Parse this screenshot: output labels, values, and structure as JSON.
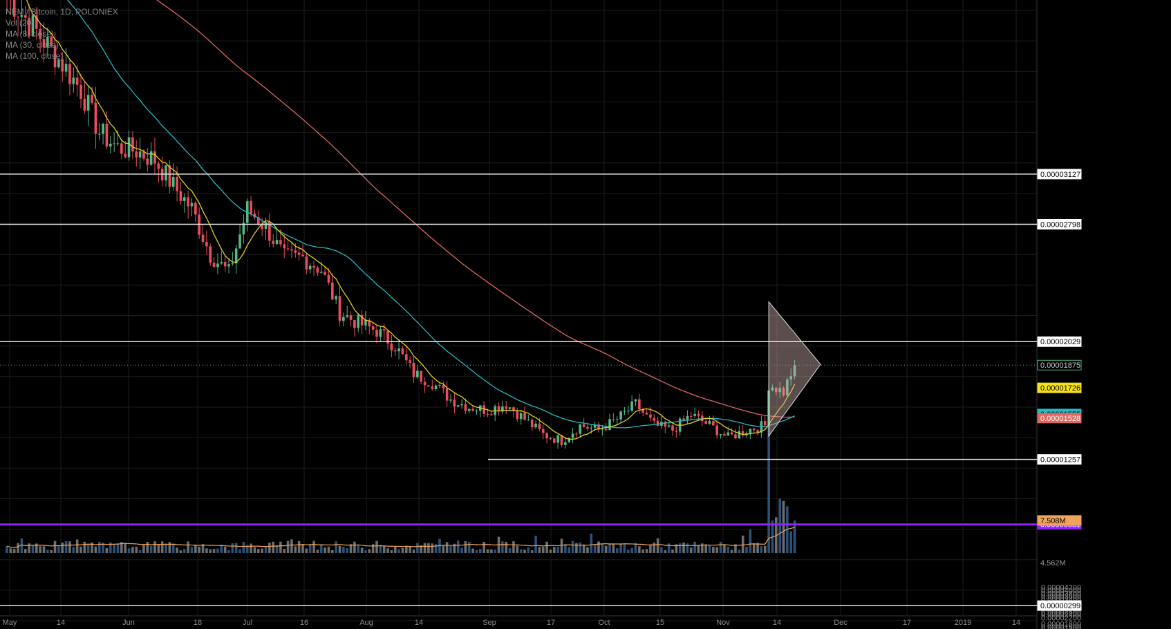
{
  "legend": {
    "symbol": "NEM / Bitcoin, 1D, POLONIEX",
    "vol": "Vol (20)",
    "ma8": "MA (8, close)",
    "ma30": "MA (30, close)",
    "ma100": "MA (100, close)"
  },
  "colors": {
    "background": "#000000",
    "grid": "#1c1c1c",
    "up": "#53b987",
    "down": "#eb4d5c",
    "ma8": "#e3d11b",
    "ma30": "#22b9c6",
    "ma100": "#e0675e",
    "purple": "#8e24f5",
    "hline": "#e5e5e5",
    "vol_up": "#315a86",
    "vol_down": "#7a7a7a"
  },
  "chart_data": {
    "type": "candlestick",
    "grid": true,
    "price_axis_side": "right",
    "ylim": [
      6.5e-07,
      4.4e-06
    ],
    "y_ticks": [
      "0.00004200",
      "0.00004000",
      "0.00003800",
      "0.00003600",
      "0.00003400",
      "0.00003200",
      "0.00003000",
      "0.00002800",
      "0.00002600",
      "0.00002400",
      "0.00002200",
      "0.00001800",
      "0.00001600",
      "0.00001400",
      "0.00001200",
      "0.00001000",
      "0.00000800",
      "0.00000600",
      "0.00000400",
      "0.00000200"
    ],
    "x_ticks": [
      "May",
      "14",
      "Jun",
      "18",
      "Jul",
      "16",
      "Aug",
      "14",
      "Sep",
      "17",
      "Oct",
      "15",
      "Nov",
      "14",
      "Dec",
      "17",
      "2019",
      "14"
    ],
    "horizontal_levels": [
      {
        "label": "0.00003127",
        "value": 3.127e-05,
        "color": "#e5e5e5"
      },
      {
        "label": "0.00002798",
        "value": 2.798e-05,
        "color": "#e5e5e5"
      },
      {
        "label": "0.00002029",
        "value": 2.029e-05,
        "color": "#e5e5e5"
      },
      {
        "label": "0.00001257",
        "value": 1.257e-05,
        "color": "#e5e5e5"
      },
      {
        "label": "0.00000831",
        "value": 8.31e-06,
        "color": "#8e24f5"
      },
      {
        "label": "0.00000299",
        "value": 2.99e-06,
        "color": "#e5e5e5"
      }
    ],
    "price_tags": [
      {
        "label": "0.00001875",
        "value": 1.875e-05,
        "bg": "#000000",
        "fg": "#cccccc",
        "border": "#53b987"
      },
      {
        "label": "0.00001726",
        "value": 1.726e-05,
        "bg": "#f5e216",
        "fg": "#000000"
      },
      {
        "label": "0.00001555",
        "value": 1.555e-05,
        "bg": "#22b9c6",
        "fg": "#000000"
      },
      {
        "label": "0.00001528",
        "value": 1.528e-05,
        "bg": "#e0675e",
        "fg": "#ffffff"
      }
    ],
    "volume_tags": [
      {
        "label": "7.508M",
        "bg": "#f0a35a",
        "fg": "#000000"
      },
      {
        "label": "4.562M",
        "bg": "#000000",
        "fg": "#999999"
      }
    ],
    "last_close": 1.875e-05,
    "ma_last": {
      "ma8": 1.726e-05,
      "ma30": 1.555e-05,
      "ma100": 1.528e-05
    },
    "ohlc_anchor_points": [
      [
        0,
        4.3e-05
      ],
      [
        5,
        4.15e-05
      ],
      [
        10,
        4e-05
      ],
      [
        15,
        3.85e-05
      ],
      [
        20,
        3.68e-05
      ],
      [
        25,
        3.4e-05
      ],
      [
        30,
        3.3e-05
      ],
      [
        35,
        3.28e-05
      ],
      [
        40,
        3.22e-05
      ],
      [
        45,
        3.05e-05
      ],
      [
        50,
        2.9e-05
      ],
      [
        55,
        2.6e-05
      ],
      [
        60,
        2.48e-05
      ],
      [
        65,
        2.9e-05
      ],
      [
        70,
        2.78e-05
      ],
      [
        75,
        2.58e-05
      ],
      [
        80,
        2.58e-05
      ],
      [
        85,
        2.5e-05
      ],
      [
        90,
        2.22e-05
      ],
      [
        95,
        2.15e-05
      ],
      [
        100,
        2.1e-05
      ],
      [
        105,
        2e-05
      ],
      [
        110,
        1.82e-05
      ],
      [
        115,
        1.76e-05
      ],
      [
        120,
        1.65e-05
      ],
      [
        125,
        1.6e-05
      ],
      [
        130,
        1.58e-05
      ],
      [
        135,
        1.62e-05
      ],
      [
        140,
        1.52e-05
      ],
      [
        145,
        1.42e-05
      ],
      [
        150,
        1.38e-05
      ],
      [
        155,
        1.48e-05
      ],
      [
        160,
        1.45e-05
      ],
      [
        165,
        1.52e-05
      ],
      [
        170,
        1.62e-05
      ],
      [
        175,
        1.48e-05
      ],
      [
        180,
        1.45e-05
      ],
      [
        185,
        1.55e-05
      ],
      [
        190,
        1.48e-05
      ],
      [
        195,
        1.4e-05
      ],
      [
        200,
        1.45e-05
      ],
      [
        205,
        1.48e-05
      ],
      [
        206,
        1.75e-05
      ],
      [
        210,
        1.7e-05
      ],
      [
        213,
        1.88e-05
      ]
    ],
    "pattern": {
      "type": "triangle",
      "points": [
        [
          206,
          2.29e-05
        ],
        [
          206,
          1.41e-05
        ],
        [
          220,
          1.88e-05
        ]
      ]
    },
    "volume_spike": {
      "day": 206,
      "value": 29.5
    },
    "volume_ma_last": 7.508
  }
}
